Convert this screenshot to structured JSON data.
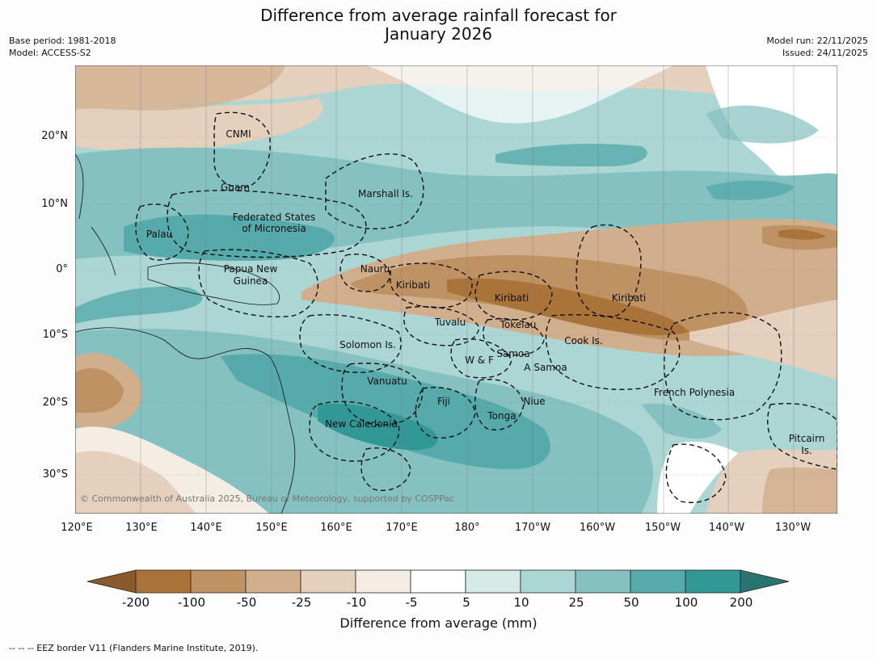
{
  "title": {
    "line1": "Difference from average rainfall forecast for",
    "line2": "January 2026"
  },
  "meta": {
    "base_period": "Base period: 1981-2018",
    "model": "Model: ACCESS-S2",
    "model_run": "Model run: 22/11/2025",
    "issued": "Issued: 24/11/2025"
  },
  "axes": {
    "lat_labels": [
      "20°N",
      "10°N",
      "0°",
      "10°S",
      "20°S",
      "30°S"
    ],
    "lon_labels": [
      "120°E",
      "130°E",
      "140°E",
      "150°E",
      "160°E",
      "170°E",
      "180°",
      "170°W",
      "160°W",
      "150°W",
      "140°W",
      "130°W"
    ]
  },
  "regions": [
    "CNMI",
    "Guam",
    "Marshall Is.",
    "Federated States",
    "of Micronesia",
    "Palau",
    "Papua New",
    "Guinea",
    "Nauru",
    "Kiribati",
    "Kiribati",
    "Kiribati",
    "Tuvalu",
    "Tokelau",
    "Cook Is.",
    "Solomon Is.",
    "W & F",
    "Samoa",
    "A Samoa",
    "Vanuatu",
    "Fiji",
    "Niue",
    "Tonga",
    "New Caledonia",
    "French Polynesia",
    "Pitcairn",
    "Is."
  ],
  "copyright": "© Commonwealth of Australia 2025, Bureau of Meteorology, supported by COSPPac",
  "colorbar": {
    "ticks": [
      "-200",
      "-100",
      "-50",
      "-25",
      "-10",
      "-5",
      "5",
      "10",
      "25",
      "50",
      "100",
      "200"
    ],
    "colors": [
      "#8b5a2b",
      "#a9733a",
      "#bf9264",
      "#d1ae8c",
      "#e4d0bd",
      "#f3ede4",
      "#ffffff",
      "#d6eae8",
      "#acd6d4",
      "#84c1c0",
      "#57aaab",
      "#319896",
      "#2a7470"
    ],
    "label": "Difference from average (mm)"
  },
  "footnote": "--  --  -- EEZ border V11 (Flanders Marine Institute, 2019)."
}
